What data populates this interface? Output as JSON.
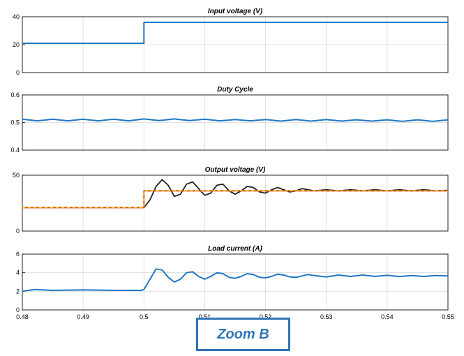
{
  "chart_data": [
    {
      "type": "line",
      "title": "Input voltage (V)",
      "xlim": [
        0.48,
        0.55
      ],
      "ylim": [
        0,
        40
      ],
      "yticks": [
        0,
        20,
        40
      ],
      "grid": true,
      "series": [
        {
          "color": "#1f77c4",
          "x": [
            0.48,
            0.5,
            0.5,
            0.55
          ],
          "y": [
            21,
            21,
            36,
            36
          ]
        }
      ]
    },
    {
      "type": "line",
      "title": "Duty Cycle",
      "xlim": [
        0.48,
        0.55
      ],
      "ylim": [
        0.4,
        0.6
      ],
      "yticks": [
        0.4,
        0.5,
        0.6
      ],
      "grid": true,
      "series": [
        {
          "color": "#1f77c4",
          "x": [
            0.48,
            0.4825,
            0.485,
            0.4875,
            0.49,
            0.4925,
            0.495,
            0.4975,
            0.5,
            0.5025,
            0.505,
            0.5075,
            0.51,
            0.5125,
            0.515,
            0.5175,
            0.52,
            0.5225,
            0.525,
            0.5275,
            0.53,
            0.5325,
            0.535,
            0.5375,
            0.54,
            0.5425,
            0.545,
            0.5475,
            0.55
          ],
          "y": [
            0.512,
            0.506,
            0.512,
            0.506,
            0.512,
            0.506,
            0.512,
            0.506,
            0.513,
            0.507,
            0.513,
            0.507,
            0.512,
            0.506,
            0.511,
            0.506,
            0.511,
            0.505,
            0.511,
            0.505,
            0.511,
            0.505,
            0.51,
            0.505,
            0.51,
            0.504,
            0.51,
            0.504,
            0.51
          ]
        }
      ]
    },
    {
      "type": "line",
      "title": "Output voltage (V)",
      "xlim": [
        0.48,
        0.55
      ],
      "ylim": [
        0,
        50
      ],
      "yticks": [
        0,
        50
      ],
      "grid": true,
      "series": [
        {
          "color": "#222222",
          "x": [
            0.48,
            0.49,
            0.4995,
            0.5,
            0.501,
            0.502,
            0.503,
            0.504,
            0.505,
            0.506,
            0.507,
            0.508,
            0.509,
            0.51,
            0.511,
            0.512,
            0.513,
            0.514,
            0.515,
            0.516,
            0.517,
            0.518,
            0.519,
            0.52,
            0.521,
            0.522,
            0.523,
            0.524,
            0.525,
            0.526,
            0.527,
            0.528,
            0.53,
            0.532,
            0.534,
            0.536,
            0.538,
            0.54,
            0.542,
            0.544,
            0.546,
            0.548,
            0.55
          ],
          "y": [
            21,
            21,
            21,
            21,
            28,
            40,
            46,
            41,
            31,
            33,
            42,
            44,
            38,
            32,
            34,
            41,
            42,
            36,
            33,
            36,
            40,
            39,
            35,
            34,
            37,
            39,
            37,
            35,
            36,
            38,
            37,
            36,
            37,
            36,
            37,
            36,
            37,
            36,
            37,
            36,
            37,
            36,
            36.5
          ]
        },
        {
          "color": "#e8501f",
          "x": [
            0.48,
            0.5,
            0.5,
            0.55
          ],
          "y": [
            21,
            21,
            36,
            36
          ]
        },
        {
          "color": "#e8c21a",
          "x": [
            0.48,
            0.49,
            0.5,
            0.5,
            0.51,
            0.52,
            0.53,
            0.54,
            0.55
          ],
          "y": [
            21,
            21,
            21,
            36,
            36,
            36,
            36,
            36,
            36
          ]
        }
      ]
    },
    {
      "type": "line",
      "title": "Load current (A)",
      "xlim": [
        0.48,
        0.55
      ],
      "ylim": [
        0,
        6
      ],
      "yticks": [
        0,
        2,
        4,
        6
      ],
      "xticks": [
        0.48,
        0.49,
        0.5,
        0.51,
        0.52,
        0.53,
        0.54,
        0.55
      ],
      "xticklabels": [
        "0.48",
        "0.49",
        "0.5",
        "0.51",
        "0.52",
        "0.53",
        "0.54",
        "0.55"
      ],
      "grid": true,
      "series": [
        {
          "color": "#1f77c4",
          "x": [
            0.48,
            0.482,
            0.485,
            0.49,
            0.495,
            0.4995,
            0.5,
            0.501,
            0.502,
            0.503,
            0.504,
            0.505,
            0.506,
            0.507,
            0.508,
            0.509,
            0.51,
            0.511,
            0.512,
            0.513,
            0.514,
            0.515,
            0.516,
            0.517,
            0.518,
            0.519,
            0.52,
            0.521,
            0.522,
            0.523,
            0.524,
            0.525,
            0.526,
            0.527,
            0.528,
            0.53,
            0.532,
            0.534,
            0.536,
            0.538,
            0.54,
            0.542,
            0.544,
            0.546,
            0.548,
            0.55
          ],
          "y": [
            2.0,
            2.2,
            2.1,
            2.15,
            2.1,
            2.1,
            2.2,
            3.3,
            4.4,
            4.3,
            3.5,
            3.0,
            3.3,
            4.0,
            4.1,
            3.6,
            3.3,
            3.6,
            4.0,
            3.9,
            3.5,
            3.4,
            3.6,
            3.9,
            3.8,
            3.5,
            3.45,
            3.6,
            3.85,
            3.75,
            3.55,
            3.5,
            3.65,
            3.8,
            3.7,
            3.55,
            3.75,
            3.6,
            3.75,
            3.6,
            3.72,
            3.58,
            3.7,
            3.6,
            3.7,
            3.65
          ]
        }
      ]
    }
  ],
  "zoom_label": "Zoom B"
}
